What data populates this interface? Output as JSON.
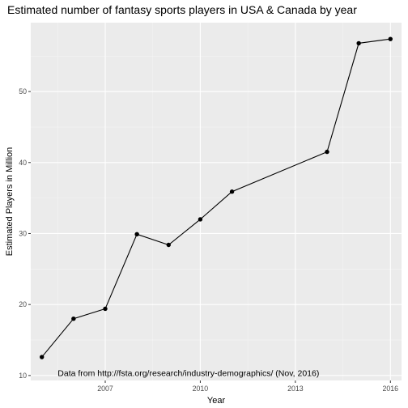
{
  "colors": {
    "panel_background": "#EBEBEB",
    "grid_major": "#FFFFFF",
    "grid_minor": "#F5F5F5",
    "line": "#000000",
    "point": "#000000",
    "tick_text": "#4D4D4D"
  },
  "chart_data": {
    "type": "line",
    "title": "Estimated number of fantasy sports players in USA & Canada by year",
    "xlabel": "Year",
    "ylabel": "Estimated Players in Million",
    "xlim": [
      2004.65,
      2016.35
    ],
    "ylim": [
      9.3,
      59.7
    ],
    "x_ticks": [
      2007,
      2010,
      2013,
      2016
    ],
    "x_tick_labels": [
      "2007",
      "2010",
      "2013",
      "2016"
    ],
    "x_minor_ticks": [
      2005.5,
      2008.5,
      2011.5,
      2014.5
    ],
    "y_ticks": [
      10,
      20,
      30,
      40,
      50
    ],
    "y_tick_labels": [
      "10",
      "20",
      "30",
      "40",
      "50"
    ],
    "y_minor_ticks": [
      15,
      25,
      35,
      45,
      55
    ],
    "grid": true,
    "legend": "none",
    "annotation": {
      "text": "Data from http://fsta.org/research/industry-demographics/ (Nov, 2016)",
      "x": 2005.5,
      "y": 9.9
    },
    "series": [
      {
        "x": [
          2005,
          2006,
          2007,
          2008,
          2009,
          2010,
          2011,
          2014,
          2015,
          2016
        ],
        "values": [
          12.6,
          18.0,
          19.4,
          29.9,
          28.4,
          32.0,
          35.9,
          41.5,
          56.8,
          57.4
        ]
      }
    ]
  }
}
